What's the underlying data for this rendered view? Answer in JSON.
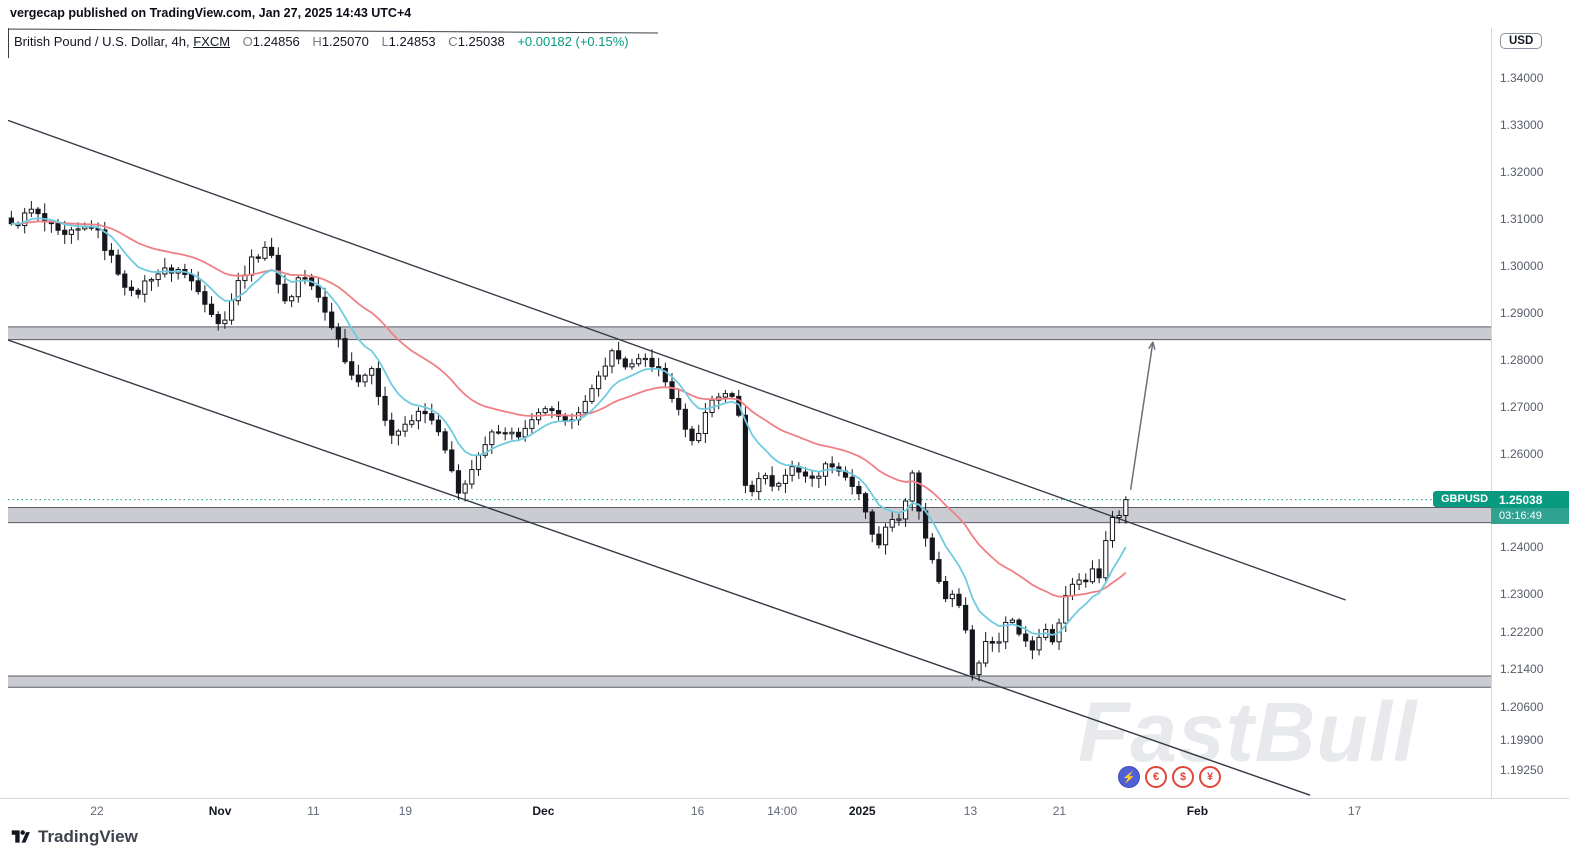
{
  "meta": {
    "publisher_line": "vergecap published on TradingView.com, Jan 27, 2025 14:43 UTC+4"
  },
  "header": {
    "title_main": "British Pound / U.S. Dollar, 4h, ",
    "title_exchange": "FXCM",
    "ohlc": {
      "o_label": "O",
      "o": "1.24856",
      "h_label": "H",
      "h": "1.25070",
      "l_label": "L",
      "l": "1.24853",
      "c_label": "C",
      "c": "1.25038",
      "change": "+0.00182 (+0.15%)"
    }
  },
  "price_axis": {
    "currency_label": "USD",
    "ticks": [
      {
        "value": 1.34,
        "label": "1.34000"
      },
      {
        "value": 1.33,
        "label": "1.33000"
      },
      {
        "value": 1.32,
        "label": "1.32000"
      },
      {
        "value": 1.31,
        "label": "1.31000"
      },
      {
        "value": 1.3,
        "label": "1.30000"
      },
      {
        "value": 1.29,
        "label": "1.29000"
      },
      {
        "value": 1.28,
        "label": "1.28000"
      },
      {
        "value": 1.27,
        "label": "1.27000"
      },
      {
        "value": 1.26,
        "label": "1.26000"
      },
      {
        "value": 1.24,
        "label": "1.24000"
      },
      {
        "value": 1.23,
        "label": "1.23000"
      },
      {
        "value": 1.222,
        "label": "1.22200"
      },
      {
        "value": 1.214,
        "label": "1.21400"
      },
      {
        "value": 1.206,
        "label": "1.20600"
      },
      {
        "value": 1.199,
        "label": "1.19900"
      },
      {
        "value": 1.1925,
        "label": "1.19250"
      }
    ],
    "current": {
      "symbol_label": "GBPUSD",
      "price_label": "1.25038",
      "countdown": "03:16:49",
      "badge_color": "#089981",
      "countdown_color": "#2fa292"
    }
  },
  "time_axis": {
    "labels": [
      {
        "text": "22",
        "f": 0.06,
        "strong": false
      },
      {
        "text": "Nov",
        "f": 0.143,
        "strong": true
      },
      {
        "text": "11",
        "f": 0.206,
        "strong": false
      },
      {
        "text": "19",
        "f": 0.268,
        "strong": false
      },
      {
        "text": "Dec",
        "f": 0.361,
        "strong": true
      },
      {
        "text": "16",
        "f": 0.465,
        "strong": false
      },
      {
        "text": "14:00",
        "f": 0.522,
        "strong": false
      },
      {
        "text": "2025",
        "f": 0.576,
        "strong": true
      },
      {
        "text": "13",
        "f": 0.649,
        "strong": false
      },
      {
        "text": "21",
        "f": 0.709,
        "strong": false
      },
      {
        "text": "Feb",
        "f": 0.802,
        "strong": true
      },
      {
        "text": "17",
        "f": 0.908,
        "strong": false
      }
    ]
  },
  "footer": {
    "logo_text": "TradingView"
  },
  "watermark": {
    "text": "FastBull",
    "icons": [
      "lightning-icon",
      "euro-icon",
      "dollar-icon",
      "yen-icon"
    ],
    "glyphs": [
      "⚡",
      "€",
      "$",
      "¥"
    ]
  },
  "chart_data": {
    "type": "candlestick",
    "title": "British Pound / U.S. Dollar, 4h, FXCM",
    "symbol": "GBPUSD",
    "timeframe": "4h",
    "ylim": [
      1.1868,
      1.3509
    ],
    "data_end_frac": 0.756,
    "candle_count": 168,
    "close_path": [
      [
        0.0,
        1.3085
      ],
      [
        0.018,
        1.312
      ],
      [
        0.046,
        1.306
      ],
      [
        0.073,
        1.309
      ],
      [
        0.109,
        1.2935
      ],
      [
        0.127,
        1.2985
      ],
      [
        0.149,
        1.2995
      ],
      [
        0.167,
        1.296
      ],
      [
        0.187,
        1.287
      ],
      [
        0.207,
        1.2985
      ],
      [
        0.229,
        1.305
      ],
      [
        0.247,
        1.2915
      ],
      [
        0.26,
        1.299
      ],
      [
        0.276,
        1.293
      ],
      [
        0.291,
        1.286
      ],
      [
        0.307,
        1.276
      ],
      [
        0.323,
        1.278
      ],
      [
        0.34,
        1.264
      ],
      [
        0.357,
        1.2665
      ],
      [
        0.369,
        1.27
      ],
      [
        0.385,
        1.264
      ],
      [
        0.401,
        1.2515
      ],
      [
        0.416,
        1.258
      ],
      [
        0.434,
        1.2655
      ],
      [
        0.456,
        1.264
      ],
      [
        0.479,
        1.27
      ],
      [
        0.497,
        1.2665
      ],
      [
        0.517,
        1.2715
      ],
      [
        0.538,
        1.282
      ],
      [
        0.553,
        1.2785
      ],
      [
        0.568,
        1.2805
      ],
      [
        0.583,
        1.2775
      ],
      [
        0.599,
        1.269
      ],
      [
        0.612,
        1.262
      ],
      [
        0.627,
        1.2715
      ],
      [
        0.643,
        1.2735
      ],
      [
        0.652,
        1.27
      ],
      [
        0.66,
        1.2505
      ],
      [
        0.672,
        1.256
      ],
      [
        0.686,
        1.253
      ],
      [
        0.701,
        1.2575
      ],
      [
        0.719,
        1.2545
      ],
      [
        0.734,
        1.2585
      ],
      [
        0.75,
        1.255
      ],
      [
        0.761,
        1.251
      ],
      [
        0.77,
        1.245
      ],
      [
        0.777,
        1.2395
      ],
      [
        0.788,
        1.246
      ],
      [
        0.8,
        1.247
      ],
      [
        0.808,
        1.256
      ],
      [
        0.817,
        1.245
      ],
      [
        0.829,
        1.236
      ],
      [
        0.84,
        1.228
      ],
      [
        0.847,
        1.231
      ],
      [
        0.856,
        1.223
      ],
      [
        0.864,
        1.211
      ],
      [
        0.875,
        1.2215
      ],
      [
        0.884,
        1.2185
      ],
      [
        0.895,
        1.2265
      ],
      [
        0.904,
        1.222
      ],
      [
        0.918,
        1.2185
      ],
      [
        0.927,
        1.2235
      ],
      [
        0.936,
        1.2195
      ],
      [
        0.947,
        1.231
      ],
      [
        0.956,
        1.2345
      ],
      [
        0.963,
        1.232
      ],
      [
        0.971,
        1.2365
      ],
      [
        0.976,
        1.2335
      ],
      [
        0.984,
        1.2445
      ],
      [
        0.991,
        1.249
      ],
      [
        0.996,
        1.2465
      ],
      [
        1.0,
        1.25038
      ]
    ],
    "moving_averages": [
      {
        "name": "fast-ma",
        "period": 9,
        "color": "#6fcbe0"
      },
      {
        "name": "slow-ma",
        "period": 28,
        "color": "#ef8086"
      }
    ],
    "zones": [
      {
        "top": 1.2872,
        "bottom": 1.2845
      },
      {
        "top": 1.2487,
        "bottom": 1.2455
      },
      {
        "top": 1.2128,
        "bottom": 1.2104
      }
    ],
    "zone_fill": "rgba(151,154,163,0.5)",
    "zone_border": "#5a5e69",
    "trendlines": [
      {
        "f0": 0.0,
        "p0": 1.3312,
        "f1": 0.902,
        "p1": 1.229
      },
      {
        "f0": 0.0,
        "p0": 1.2844,
        "f1": 0.878,
        "p1": 1.1874
      }
    ],
    "trendline_color": "#363a45",
    "current_price": 1.25038,
    "current_price_line_color": "#089981",
    "arrow": {
      "f0": 0.757,
      "p0": 1.2525,
      "f1": 0.772,
      "p1": 1.284,
      "color": "#6b6f7a"
    },
    "candle_up_color": "#ffffff",
    "candle_down_color": "#16171d",
    "candle_border_color": "#16171d"
  }
}
